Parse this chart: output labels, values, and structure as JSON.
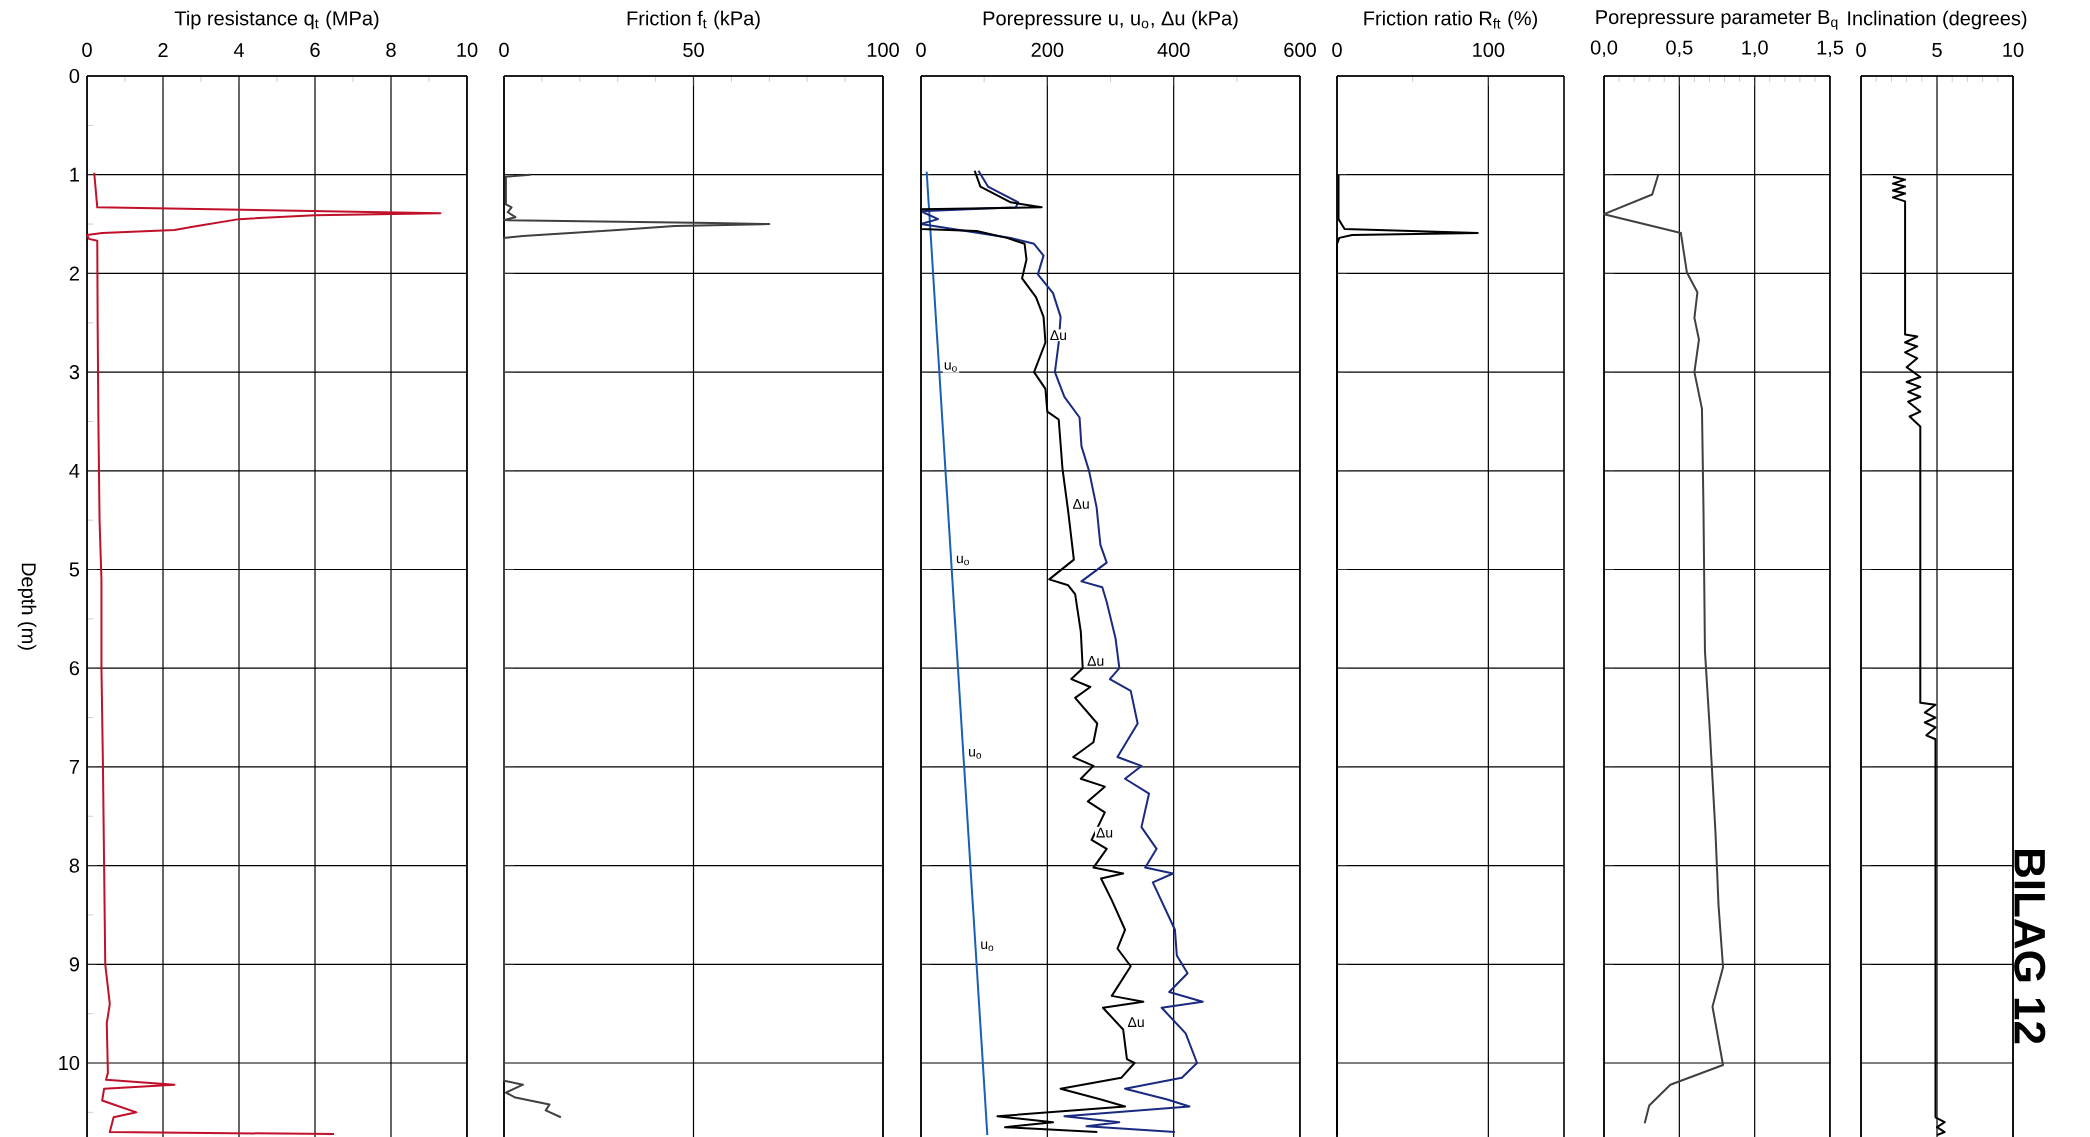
{
  "chart_data": [
    {
      "type": "line",
      "title": "Tip resistance q$_{t}$ (MPa)",
      "ylabel": "Depth (m)",
      "xlim": [
        0,
        10
      ],
      "ylim": [
        10.75,
        0
      ],
      "xticks": [
        0,
        {
          "value": 1,
          "label": null
        },
        2,
        {
          "value": 3,
          "label": null
        },
        4,
        {
          "value": 5,
          "label": null
        },
        6,
        {
          "value": 7,
          "label": null
        },
        8,
        {
          "value": 9,
          "label": null
        },
        10
      ],
      "yticks": [
        0,
        {
          "value": 0.5,
          "label": null
        },
        1,
        {
          "value": 1.5,
          "label": null
        },
        2,
        {
          "value": 2.5,
          "label": null
        },
        3,
        {
          "value": 3.5,
          "label": null
        },
        4,
        {
          "value": 4.5,
          "label": null
        },
        5,
        {
          "value": 5.5,
          "label": null
        },
        6,
        {
          "value": 6.5,
          "label": null
        },
        7,
        {
          "value": 7.5,
          "label": null
        },
        8,
        {
          "value": 8.5,
          "label": null
        },
        9,
        {
          "value": 9.5,
          "label": null
        },
        10,
        {
          "value": 10.5,
          "label": null
        }
      ],
      "grid": true,
      "series": [
        {
          "color": "#c0102a",
          "x": [
            0.19,
            0.27,
            9.3,
            6.0,
            4.0,
            2.9,
            2.3,
            0.4,
            0.0,
            0.05,
            0.27,
            0.28,
            0.3,
            0.33,
            0.38,
            0.38,
            0.42,
            0.45,
            0.48,
            0.6,
            0.52,
            0.55,
            0.5,
            2.3,
            0.45,
            0.4,
            0.7,
            1.3,
            0.7,
            0.6,
            6.5
          ],
          "values": [
            0.98,
            1.33,
            1.39,
            1.41,
            1.45,
            1.52,
            1.56,
            1.59,
            1.61,
            1.65,
            1.67,
            2.5,
            3.5,
            4.5,
            5.1,
            6,
            7,
            8,
            9,
            9.4,
            9.6,
            10.1,
            10.17,
            10.22,
            10.26,
            10.38,
            10.42,
            10.5,
            10.55,
            10.7,
            10.72
          ]
        }
      ]
    },
    {
      "type": "line",
      "title": "Friction f$_{t}$ (kPa)",
      "xlim": [
        0,
        100
      ],
      "ylim": [
        10.75,
        0
      ],
      "xticks": [
        0,
        {
          "value": 10,
          "label": null
        },
        {
          "value": 20,
          "label": null
        },
        {
          "value": 30,
          "label": null
        },
        {
          "value": 40,
          "label": null
        },
        50,
        {
          "value": 60,
          "label": null
        },
        {
          "value": 70,
          "label": null
        },
        {
          "value": 80,
          "label": null
        },
        {
          "value": 90,
          "label": null
        },
        100
      ],
      "yticks": [
        0,
        1,
        2,
        3,
        4,
        5,
        6,
        7,
        8,
        9,
        10
      ],
      "tick_labels": "x",
      "grid": true,
      "series": [
        {
          "color": "#404040",
          "x": [
            7,
            0.5,
            0.5,
            2,
            1,
            3,
            0,
            55,
            70,
            45,
            30,
            5,
            0,
            0,
            5,
            0.5,
            3,
            12,
            11,
            15
          ],
          "values": [
            1.0,
            1.02,
            1.3,
            1.33,
            1.38,
            1.43,
            1.46,
            1.49,
            1.5,
            1.52,
            1.56,
            1.62,
            1.64,
            10.18,
            10.22,
            10.3,
            10.35,
            10.42,
            10.48,
            10.55
          ]
        }
      ]
    },
    {
      "type": "line",
      "title": "Porepressure u, u$_{o}$, Δu (kPa)",
      "xlim": [
        0,
        600
      ],
      "ylim": [
        10.75,
        0
      ],
      "xticks": [
        0,
        {
          "value": 100,
          "label": null
        },
        200,
        {
          "value": 300,
          "label": null
        },
        400,
        {
          "value": 500,
          "label": null
        },
        600
      ],
      "yticks": [
        0,
        1,
        2,
        3,
        4,
        5,
        6,
        7,
        8,
        9,
        10
      ],
      "tick_labels": "x",
      "grid": true,
      "series": [
        {
          "color": "#1a5fb4",
          "x": [
            9,
            105
          ],
          "values": [
            0.97,
            10.73
          ]
        },
        {
          "color": "#1a2a80",
          "x": [
            91,
            106,
            154,
            150,
            0,
            27,
            0,
            142,
            179,
            194,
            185,
            209,
            221,
            218,
            212,
            227,
            251,
            254,
            266,
            278,
            284,
            294,
            254,
            287,
            294,
            308,
            314,
            299,
            332,
            343,
            311,
            349,
            323,
            361,
            349,
            373,
            355,
            399,
            367,
            402,
            405,
            422,
            393,
            446,
            381,
            419,
            437,
            413,
            323,
            390,
            425,
            227,
            314,
            262,
            402
          ],
          "values": [
            0.96,
            1.12,
            1.28,
            1.33,
            1.37,
            1.45,
            1.5,
            1.64,
            1.7,
            1.82,
            2.01,
            2.2,
            2.44,
            2.7,
            3.0,
            3.25,
            3.46,
            3.75,
            4.0,
            4.37,
            4.75,
            4.93,
            5.12,
            5.18,
            5.33,
            5.7,
            6.0,
            6.11,
            6.23,
            6.56,
            6.9,
            6.99,
            7.12,
            7.27,
            7.61,
            7.83,
            8.02,
            8.08,
            8.17,
            8.65,
            8.91,
            9.09,
            9.28,
            9.38,
            9.44,
            9.7,
            10.0,
            10.15,
            10.26,
            10.37,
            10.44,
            10.54,
            10.6,
            10.64,
            10.7
          ]
        },
        {
          "color": "#000000",
          "x": [
            85,
            94,
            142,
            191,
            0,
            0,
            88,
            136,
            164,
            167,
            160,
            182,
            194,
            197,
            179,
            197,
            200,
            218,
            224,
            233,
            242,
            203,
            233,
            244,
            253,
            256,
            238,
            268,
            244,
            279,
            273,
            241,
            273,
            253,
            291,
            264,
            291,
            270,
            294,
            273,
            320,
            285,
            302,
            323,
            311,
            332,
            302,
            352,
            288,
            320,
            326,
            338,
            317,
            221,
            285,
            323,
            121,
            209,
            133,
            279
          ],
          "values": [
            0.96,
            1.12,
            1.28,
            1.33,
            1.35,
            1.55,
            1.57,
            1.64,
            1.7,
            1.86,
            2.05,
            2.24,
            2.44,
            2.7,
            3.0,
            3.17,
            3.4,
            3.48,
            3.98,
            4.41,
            4.9,
            5.1,
            5.16,
            5.25,
            5.63,
            6.0,
            6.11,
            6.19,
            6.3,
            6.56,
            6.75,
            6.9,
            6.99,
            7.12,
            7.2,
            7.35,
            7.46,
            7.74,
            7.83,
            8.02,
            8.08,
            8.13,
            8.35,
            8.65,
            8.84,
            9.02,
            9.32,
            9.38,
            9.44,
            9.66,
            9.96,
            10.0,
            10.15,
            10.26,
            10.37,
            10.44,
            10.54,
            10.6,
            10.65,
            10.7
          ]
        }
      ],
      "annotations": [
        {
          "text": "u$_{o}$",
          "x": 29.2,
          "y": 3.02
        },
        {
          "text": "u$_{o}$",
          "x": 48.4,
          "y": 4.98
        },
        {
          "text": "u$_{o}$",
          "x": 67.7,
          "y": 6.94
        },
        {
          "text": "u$_{o}$",
          "x": 86.9,
          "y": 8.89
        },
        {
          "text": "Δu",
          "x": 197,
          "y": 2.7
        },
        {
          "text": "Δu",
          "x": 233,
          "y": 4.41
        },
        {
          "text": "Δu",
          "x": 256,
          "y": 6.0
        },
        {
          "text": "Δu",
          "x": 270,
          "y": 7.74
        },
        {
          "text": "Δu",
          "x": 320,
          "y": 9.66
        }
      ]
    },
    {
      "type": "line",
      "title": "Friction ratio R$_{ft}$ (%)",
      "xlim": [
        0,
        150
      ],
      "ylim": [
        10.75,
        0
      ],
      "xticks": [
        0,
        {
          "value": 50,
          "label": null
        },
        100
      ],
      "yticks": [
        0,
        1,
        2,
        3,
        4,
        5,
        6,
        7,
        8,
        9,
        10
      ],
      "tick_labels": "x",
      "grid": true,
      "series": [
        {
          "color": "#000000",
          "x": [
            1,
            1,
            5,
            93,
            10,
            1.5,
            0,
            0
          ],
          "values": [
            1.0,
            1.45,
            1.55,
            1.59,
            1.61,
            1.64,
            1.7,
            10.73
          ]
        }
      ]
    },
    {
      "type": "line",
      "title": "Porepressure parameter B$_{q}$",
      "xlim": [
        0,
        1.5
      ],
      "ylim": [
        10.75,
        0
      ],
      "xticks": [
        {
          "value": 0,
          "label": "0,0"
        },
        {
          "value": 0.1,
          "label": null
        },
        {
          "value": 0.2,
          "label": null
        },
        {
          "value": 0.3,
          "label": null
        },
        {
          "value": 0.4,
          "label": null
        },
        {
          "value": 0.5,
          "label": "0,5"
        },
        {
          "value": 0.6,
          "label": null
        },
        {
          "value": 0.7,
          "label": null
        },
        {
          "value": 0.8,
          "label": null
        },
        {
          "value": 0.9,
          "label": null
        },
        {
          "value": 1.0,
          "label": "1,0"
        },
        {
          "value": 1.1,
          "label": null
        },
        {
          "value": 1.2,
          "label": null
        },
        {
          "value": 1.3,
          "label": null
        },
        {
          "value": 1.4,
          "label": null
        },
        {
          "value": 1.5,
          "label": "1,5"
        }
      ],
      "yticks": [
        0,
        1,
        2,
        3,
        4,
        5,
        6,
        7,
        8,
        9,
        10
      ],
      "tick_labels": "x",
      "grid": true,
      "series": [
        {
          "color": "#404040",
          "x": [
            0.36,
            0.32,
            0.0,
            0.51,
            0.55,
            0.62,
            0.6,
            0.63,
            0.6,
            0.65,
            0.66,
            0.67,
            0.7,
            0.74,
            0.76,
            0.79,
            0.72,
            0.79,
            0.44,
            0.3,
            0.27
          ],
          "values": [
            1.0,
            1.2,
            1.4,
            1.59,
            1.99,
            2.19,
            2.45,
            2.67,
            3.0,
            3.37,
            4.36,
            5.83,
            6.57,
            7.67,
            8.4,
            9.03,
            9.43,
            10.02,
            10.22,
            10.43,
            10.61
          ]
        }
      ]
    },
    {
      "type": "line",
      "title": "Inclination (degrees)",
      "xlim": [
        0,
        10
      ],
      "ylim": [
        10.75,
        0
      ],
      "xticks": [
        0,
        {
          "value": 1,
          "label": null
        },
        {
          "value": 2,
          "label": null
        },
        {
          "value": 3,
          "label": null
        },
        {
          "value": 4,
          "label": null
        },
        5,
        {
          "value": 6,
          "label": null
        },
        {
          "value": 7,
          "label": null
        },
        {
          "value": 8,
          "label": null
        },
        {
          "value": 9,
          "label": null
        },
        10
      ],
      "yticks": [
        0,
        1,
        2,
        3,
        4,
        5,
        6,
        7,
        8,
        9,
        10
      ],
      "tick_labels": "x",
      "grid": true,
      "series": [
        {
          "color": "#000000",
          "x": [
            2.1,
            2.9,
            2.1,
            2.9,
            2.1,
            2.9,
            2.1,
            2.9,
            2.9,
            3.7,
            2.9,
            3.7,
            2.9,
            3.7,
            3.0,
            3.9,
            3.0,
            3.9,
            3.1,
            3.9,
            3.1,
            3.9,
            3.2,
            3.9,
            3.9,
            4.9,
            4.2,
            4.9,
            4.2,
            4.9,
            4.3,
            4.9,
            4.9,
            5.5,
            5.0,
            5.5,
            5.0
          ],
          "values": [
            1.02,
            1.05,
            1.09,
            1.12,
            1.16,
            1.19,
            1.23,
            1.27,
            2.62,
            2.64,
            2.7,
            2.74,
            2.8,
            2.86,
            2.95,
            3.05,
            3.1,
            3.15,
            3.2,
            3.25,
            3.3,
            3.4,
            3.45,
            3.55,
            6.35,
            6.37,
            6.45,
            6.5,
            6.55,
            6.6,
            6.68,
            6.72,
            10.55,
            10.6,
            10.65,
            10.7,
            10.73
          ]
        }
      ],
      "annotations": [
        "**BILAG 12**"
      ]
    }
  ]
}
